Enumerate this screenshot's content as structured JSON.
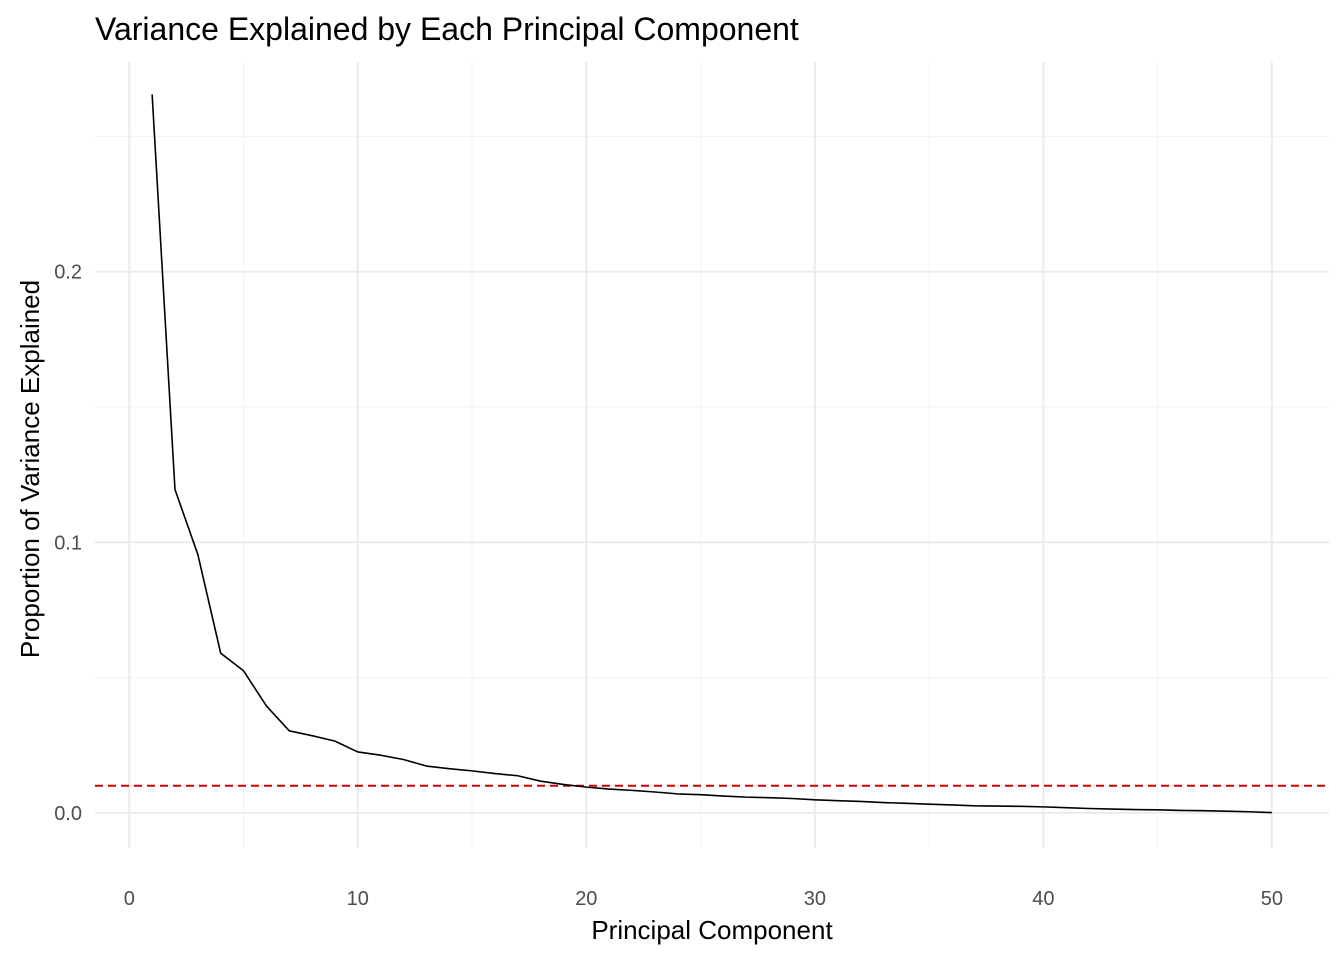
{
  "chart_data": {
    "type": "line",
    "title": "Variance Explained by Each Principal Component",
    "xlabel": "Principal Component",
    "ylabel": "Proportion of Variance Explained",
    "xlim": [
      -1.5,
      52.5
    ],
    "ylim": [
      -0.013,
      0.2775
    ],
    "x_ticks": [
      0,
      10,
      20,
      30,
      40,
      50
    ],
    "x_tick_labels": [
      "0",
      "10",
      "20",
      "30",
      "40",
      "50"
    ],
    "x_minor_ticks": [
      5,
      15,
      25,
      35,
      45
    ],
    "y_ticks": [
      0.0,
      0.1,
      0.2
    ],
    "y_tick_labels": [
      "0.0",
      "0.1",
      "0.2"
    ],
    "y_minor_ticks": [
      0.05,
      0.15,
      0.25
    ],
    "grid": true,
    "legend": "none",
    "series": [
      {
        "color": "#000000",
        "x": [
          1,
          2,
          3,
          4,
          5,
          6,
          7,
          8,
          9,
          10,
          11,
          12,
          13,
          14,
          15,
          16,
          17,
          18,
          19,
          20,
          21,
          22,
          23,
          24,
          25,
          26,
          27,
          28,
          29,
          30,
          31,
          32,
          33,
          34,
          35,
          36,
          37,
          38,
          39,
          40,
          41,
          42,
          43,
          44,
          45,
          46,
          47,
          48,
          49,
          50
        ],
        "values": [
          0.2655,
          0.1195,
          0.0955,
          0.059,
          0.0525,
          0.0395,
          0.0303,
          0.0285,
          0.0265,
          0.0225,
          0.0213,
          0.0197,
          0.0173,
          0.0163,
          0.0155,
          0.0145,
          0.0137,
          0.0117,
          0.0105,
          0.0095,
          0.0088,
          0.0083,
          0.0077,
          0.007,
          0.0067,
          0.0062,
          0.0058,
          0.0056,
          0.0053,
          0.0048,
          0.0045,
          0.0042,
          0.0038,
          0.0035,
          0.0032,
          0.0029,
          0.0026,
          0.0025,
          0.0024,
          0.0022,
          0.0019,
          0.0016,
          0.0014,
          0.0012,
          0.0011,
          0.0009,
          0.0008,
          0.0006,
          0.0004,
          0.0001
        ]
      }
    ],
    "reference_line": {
      "y": 0.01,
      "color": "#cc0000",
      "style": "dashed"
    }
  }
}
